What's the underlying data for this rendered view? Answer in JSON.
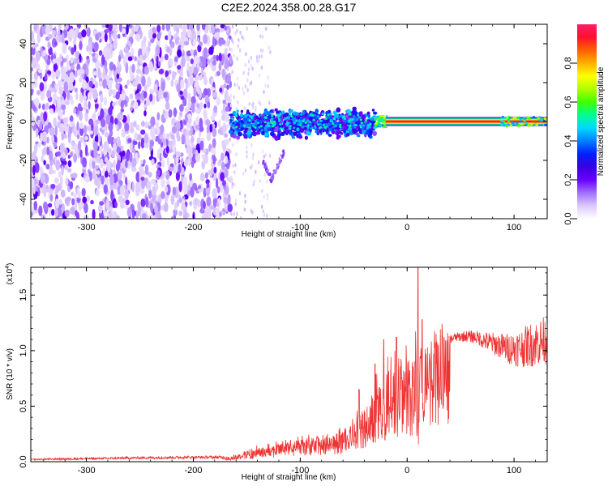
{
  "figure_title": "C2E2.2024.358.00.28.G17",
  "chart_data": [
    {
      "type": "heatmap",
      "title": "C2E2.2024.358.00.28.G17",
      "xlabel": "Height of straight line (km)",
      "ylabel": "Frequency (Hz)",
      "xlim": [
        -352,
        131
      ],
      "ylim": [
        -50,
        50
      ],
      "xticks": [
        -300,
        -200,
        -100,
        0,
        100
      ],
      "xtick_labels": [
        "-300",
        "-200",
        "-100",
        "0",
        "100"
      ],
      "yticks": [
        -40,
        -20,
        0,
        20,
        40
      ],
      "ytick_labels": [
        "-40",
        "-20",
        "0",
        "20",
        "40"
      ],
      "colorbar": {
        "label": "Normalized spectral amplitude",
        "range": [
          0,
          1
        ],
        "ticks": [
          0.0,
          0.2,
          0.4,
          0.6,
          0.8
        ],
        "tick_labels": [
          "0.0",
          "0.2",
          "0.4",
          "0.6",
          "0.8"
        ],
        "colormap": [
          "#ffffff",
          "#dcc8ff",
          "#a070ff",
          "#6a00ff",
          "#3a00e0",
          "#0020ff",
          "#0080ff",
          "#00d8ff",
          "#00ff90",
          "#40ff00",
          "#b0ff00",
          "#ffff00",
          "#ffb000",
          "#ff6000",
          "#ff1030",
          "#ff1e64"
        ]
      },
      "regions": [
        {
          "name": "broadband noise",
          "x_range": [
            -352,
            -165
          ],
          "freq_range": [
            -50,
            50
          ],
          "amplitude": 0.12
        },
        {
          "name": "turbulent carrier band",
          "x_range": [
            -165,
            -30
          ],
          "freq_range": [
            -8,
            8
          ],
          "amplitude": 0.4
        },
        {
          "name": "descending trace",
          "x_range": [
            -135,
            -115
          ],
          "freq_range": [
            -35,
            -20
          ],
          "amplitude": 0.15
        },
        {
          "name": "transition",
          "x_range": [
            -30,
            -20
          ],
          "freq_range": [
            -4,
            4
          ],
          "amplitude": 0.65
        },
        {
          "name": "stable carrier line",
          "x_range": [
            -20,
            131
          ],
          "freq_range": [
            -1,
            1
          ],
          "amplitude": 0.95
        }
      ]
    },
    {
      "type": "line",
      "title": "",
      "xlabel": "Height of straight line (km)",
      "ylabel": "SNR (10 * v/v)",
      "scale_label": "(x10",
      "scale_exponent": "4",
      "xlim": [
        -352,
        131
      ],
      "ylim": [
        0,
        1.75
      ],
      "xticks": [
        -300,
        -200,
        -100,
        0,
        100
      ],
      "xtick_labels": [
        "-300",
        "-200",
        "-100",
        "0",
        "100"
      ],
      "yticks": [
        0.0,
        0.5,
        1.0,
        1.5
      ],
      "ytick_labels": [
        "0.0",
        "0.5",
        "1.0",
        "1.5"
      ],
      "series": [
        {
          "name": "SNR",
          "color": "#ee3333",
          "x": [
            -352,
            -320,
            -280,
            -250,
            -200,
            -165,
            -150,
            -130,
            -110,
            -90,
            -70,
            -55,
            -48,
            -42,
            -35,
            -28,
            -22,
            -16,
            -12,
            -8,
            -4,
            0,
            4,
            8,
            10,
            12,
            18,
            25,
            35,
            45,
            55,
            65,
            75,
            85,
            95,
            105,
            115,
            125,
            131
          ],
          "y": [
            0.02,
            0.025,
            0.03,
            0.035,
            0.04,
            0.04,
            0.08,
            0.12,
            0.15,
            0.18,
            0.2,
            0.25,
            0.3,
            0.4,
            0.45,
            0.55,
            0.6,
            0.75,
            0.7,
            0.72,
            0.78,
            0.8,
            0.7,
            0.9,
            0.2,
            0.85,
            0.95,
            1.0,
            1.08,
            1.12,
            1.13,
            1.12,
            1.08,
            1.05,
            1.02,
            1.02,
            1.05,
            1.08,
            1.1
          ],
          "noise": [
            0.005,
            0.01,
            0.01,
            0.012,
            0.012,
            0.015,
            0.04,
            0.06,
            0.07,
            0.08,
            0.08,
            0.1,
            0.15,
            0.22,
            0.28,
            0.35,
            0.35,
            0.35,
            0.35,
            0.3,
            0.28,
            0.28,
            0.28,
            0.3,
            0.1,
            0.2,
            0.12,
            0.07,
            0.04,
            0.04,
            0.05,
            0.06,
            0.09,
            0.11,
            0.14,
            0.17,
            0.2,
            0.22,
            0.22
          ],
          "spikes": [
            {
              "x": -45,
              "y": 0.65
            },
            {
              "x": -30,
              "y": 0.88
            },
            {
              "x": -22,
              "y": 1.1
            },
            {
              "x": -10,
              "y": 1.12
            },
            {
              "x": 10,
              "y": 1.75
            },
            {
              "x": 14,
              "y": 1.28
            }
          ]
        }
      ]
    }
  ]
}
